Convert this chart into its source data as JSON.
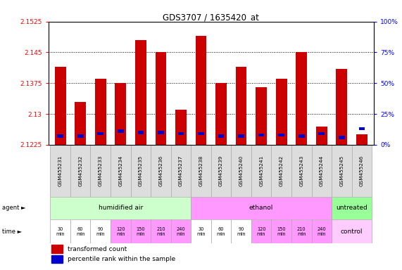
{
  "title": "GDS3707 / 1635420_at",
  "samples": [
    "GSM455231",
    "GSM455232",
    "GSM455233",
    "GSM455234",
    "GSM455235",
    "GSM455236",
    "GSM455237",
    "GSM455238",
    "GSM455239",
    "GSM455240",
    "GSM455241",
    "GSM455242",
    "GSM455243",
    "GSM455244",
    "GSM455245",
    "GSM455246"
  ],
  "red_values": [
    2.1415,
    2.133,
    2.1385,
    2.1375,
    2.148,
    2.145,
    2.131,
    2.149,
    2.1375,
    2.1415,
    2.1365,
    2.1385,
    2.145,
    2.127,
    2.141,
    2.125
  ],
  "blue_values": [
    7,
    7,
    9,
    11,
    10,
    10,
    9,
    9,
    7,
    7,
    8,
    8,
    7,
    9,
    6,
    13
  ],
  "ymin": 2.1225,
  "ymax": 2.1525,
  "y_ticks_left": [
    2.1225,
    2.13,
    2.1375,
    2.145,
    2.1525
  ],
  "y_ticks_right": [
    0,
    25,
    50,
    75,
    100
  ],
  "dotted_lines": [
    2.145,
    2.1375,
    2.13
  ],
  "bar_color": "#cc0000",
  "blue_color": "#0000cc",
  "background_color": "white",
  "legend_red": "transformed count",
  "legend_blue": "percentile rank within the sample",
  "agent_sections": [
    {
      "label": "humidified air",
      "start": 0,
      "end": 6,
      "color": "#ccffcc"
    },
    {
      "label": "ethanol",
      "start": 7,
      "end": 13,
      "color": "#ff99ff"
    },
    {
      "label": "untreated",
      "start": 14,
      "end": 15,
      "color": "#99ff99"
    }
  ],
  "time_entries": [
    {
      "col": 0,
      "label": "30\nmin",
      "color": "white"
    },
    {
      "col": 1,
      "label": "60\nmin",
      "color": "white"
    },
    {
      "col": 2,
      "label": "90\nmin",
      "color": "white"
    },
    {
      "col": 3,
      "label": "120\nmin",
      "color": "#ff99ff"
    },
    {
      "col": 4,
      "label": "150\nmin",
      "color": "#ff99ff"
    },
    {
      "col": 5,
      "label": "210\nmin",
      "color": "#ff99ff"
    },
    {
      "col": 6,
      "label": "240\nmin",
      "color": "#ff99ff"
    },
    {
      "col": 7,
      "label": "30\nmin",
      "color": "white"
    },
    {
      "col": 8,
      "label": "60\nmin",
      "color": "white"
    },
    {
      "col": 9,
      "label": "90\nmin",
      "color": "white"
    },
    {
      "col": 10,
      "label": "120\nmin",
      "color": "#ff99ff"
    },
    {
      "col": 11,
      "label": "150\nmin",
      "color": "#ff99ff"
    },
    {
      "col": 12,
      "label": "210\nmin",
      "color": "#ff99ff"
    },
    {
      "col": 13,
      "label": "240\nmin",
      "color": "#ff99ff"
    }
  ],
  "control_color": "#ffccff"
}
